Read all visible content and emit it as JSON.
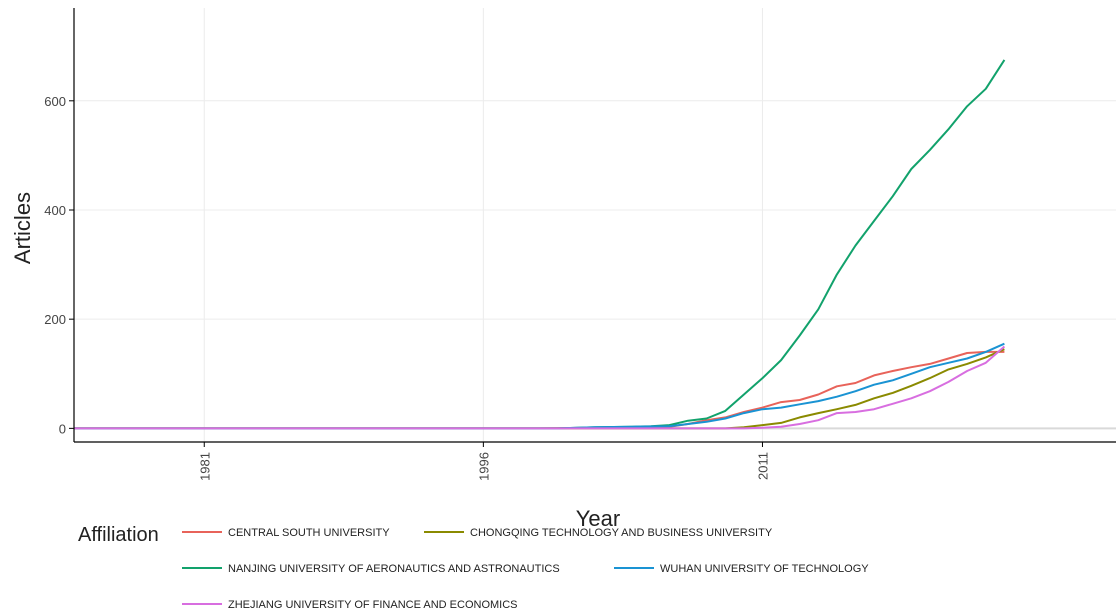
{
  "chart_data": {
    "type": "line",
    "xlabel": "Year",
    "ylabel": "Articles",
    "xlim": [
      1974,
      2030
    ],
    "ylim": [
      -25,
      770
    ],
    "x_ticks": [
      1981,
      1996,
      2011
    ],
    "y_ticks": [
      0,
      200,
      400,
      600
    ],
    "grid": true,
    "legend": {
      "title": "Affiliation",
      "position": "bottom"
    },
    "series": [
      {
        "name": "CENTRAL SOUTH UNIVERSITY",
        "color": "#E8635A",
        "x": [
          1974,
          1990,
          1999,
          2002,
          2004,
          2006,
          2007,
          2008,
          2009,
          2010,
          2011,
          2012,
          2013,
          2014,
          2015,
          2016,
          2017,
          2018,
          2019,
          2020,
          2021,
          2022,
          2023,
          2024
        ],
        "values": [
          0,
          0,
          0,
          1,
          2,
          3,
          8,
          15,
          20,
          30,
          38,
          48,
          52,
          62,
          77,
          83,
          97,
          105,
          112,
          118,
          128,
          138,
          140,
          140
        ]
      },
      {
        "name": "CHONGQING TECHNOLOGY AND BUSINESS UNIVERSITY",
        "color": "#8A8A00",
        "x": [
          1974,
          1990,
          2000,
          2006,
          2007,
          2008,
          2009,
          2010,
          2011,
          2012,
          2013,
          2014,
          2015,
          2016,
          2017,
          2018,
          2019,
          2020,
          2021,
          2022,
          2023,
          2024
        ],
        "values": [
          0,
          0,
          0,
          0,
          0,
          0,
          0,
          2,
          6,
          10,
          20,
          28,
          35,
          43,
          55,
          65,
          78,
          92,
          108,
          118,
          130,
          145
        ]
      },
      {
        "name": "NANJING UNIVERSITY OF AERONAUTICS AND ASTRONAUTICS",
        "color": "#12A26C",
        "x": [
          1974,
          1990,
          2000,
          2002,
          2004,
          2005,
          2006,
          2007,
          2008,
          2009,
          2010,
          2011,
          2012,
          2013,
          2014,
          2015,
          2016,
          2017,
          2018,
          2019,
          2020,
          2021,
          2022,
          2023,
          2024
        ],
        "values": [
          0,
          0,
          0,
          2,
          3,
          4,
          6,
          14,
          18,
          32,
          62,
          92,
          125,
          170,
          218,
          282,
          335,
          380,
          425,
          475,
          510,
          548,
          590,
          622,
          675
        ]
      },
      {
        "name": "WUHAN UNIVERSITY OF TECHNOLOGY",
        "color": "#1A93D3",
        "x": [
          1974,
          1990,
          2000,
          2002,
          2004,
          2006,
          2007,
          2008,
          2009,
          2010,
          2011,
          2012,
          2013,
          2014,
          2015,
          2016,
          2017,
          2018,
          2019,
          2020,
          2021,
          2022,
          2023,
          2024
        ],
        "values": [
          0,
          0,
          0,
          2,
          3,
          4,
          8,
          12,
          18,
          28,
          35,
          38,
          44,
          50,
          58,
          68,
          80,
          88,
          100,
          112,
          120,
          128,
          140,
          155
        ]
      },
      {
        "name": "ZHEJIANG UNIVERSITY OF FINANCE AND ECONOMICS",
        "color": "#D86EE0",
        "x": [
          1974,
          1990,
          2000,
          2006,
          2007,
          2008,
          2009,
          2010,
          2011,
          2012,
          2013,
          2014,
          2015,
          2016,
          2017,
          2018,
          2019,
          2020,
          2021,
          2022,
          2023,
          2024
        ],
        "values": [
          0,
          0,
          0,
          0,
          0,
          0,
          0,
          0,
          1,
          3,
          8,
          15,
          28,
          30,
          35,
          45,
          55,
          68,
          85,
          105,
          120,
          150
        ]
      }
    ]
  }
}
